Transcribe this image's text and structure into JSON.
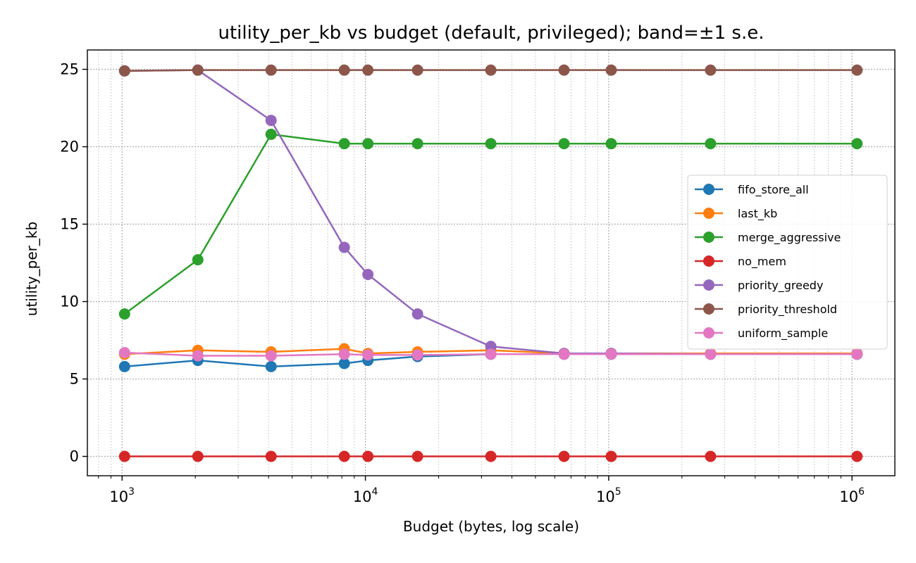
{
  "chart_data": {
    "type": "line",
    "title": "utility_per_kb vs budget (default, privileged); band=±1 s.e.",
    "xlabel": "Budget (bytes, log scale)",
    "ylabel": "utility_per_kb",
    "xscale": "log",
    "xlim": [
      720,
      1500000
    ],
    "ylim": [
      -1.25,
      26.25
    ],
    "yticks": [
      0,
      5,
      10,
      15,
      20,
      25
    ],
    "xticks": [
      {
        "value": 1000,
        "base": "10",
        "exp": "3"
      },
      {
        "value": 10000,
        "base": "10",
        "exp": "4"
      },
      {
        "value": 100000,
        "base": "10",
        "exp": "5"
      },
      {
        "value": 1000000,
        "base": "10",
        "exp": "6"
      }
    ],
    "grid": "major and minor, dotted",
    "legend_position": "center-right",
    "x": [
      1024,
      2048,
      4096,
      8192,
      10240,
      16384,
      32768,
      65536,
      102400,
      262144,
      1048576
    ],
    "series": [
      {
        "name": "fifo_store_all",
        "color": "#1f77b4",
        "values": [
          5.8,
          6.2,
          5.8,
          6.0,
          6.2,
          6.45,
          6.6,
          6.6,
          6.6,
          6.6,
          6.6
        ]
      },
      {
        "name": "last_kb",
        "color": "#ff7f0e",
        "values": [
          6.6,
          6.85,
          6.75,
          6.95,
          6.65,
          6.75,
          6.85,
          6.65,
          6.65,
          6.65,
          6.65
        ]
      },
      {
        "name": "merge_aggressive",
        "color": "#2ca02c",
        "values": [
          9.2,
          12.7,
          20.8,
          20.2,
          20.2,
          20.2,
          20.2,
          20.2,
          20.2,
          20.2,
          20.2
        ]
      },
      {
        "name": "no_mem",
        "color": "#d62728",
        "values": [
          0,
          0,
          0,
          0,
          0,
          0,
          0,
          0,
          0,
          0,
          0
        ]
      },
      {
        "name": "priority_greedy",
        "color": "#9467bd",
        "values": [
          24.9,
          24.95,
          21.7,
          13.5,
          11.75,
          9.2,
          7.1,
          6.65,
          6.65,
          6.6,
          6.6
        ]
      },
      {
        "name": "priority_threshold",
        "color": "#8c564b",
        "values": [
          24.9,
          24.95,
          24.95,
          24.95,
          24.95,
          24.95,
          24.95,
          24.95,
          24.95,
          24.95,
          24.95
        ]
      },
      {
        "name": "uniform_sample",
        "color": "#e377c2",
        "values": [
          6.7,
          6.5,
          6.5,
          6.6,
          6.55,
          6.55,
          6.6,
          6.6,
          6.6,
          6.6,
          6.6
        ]
      }
    ]
  }
}
